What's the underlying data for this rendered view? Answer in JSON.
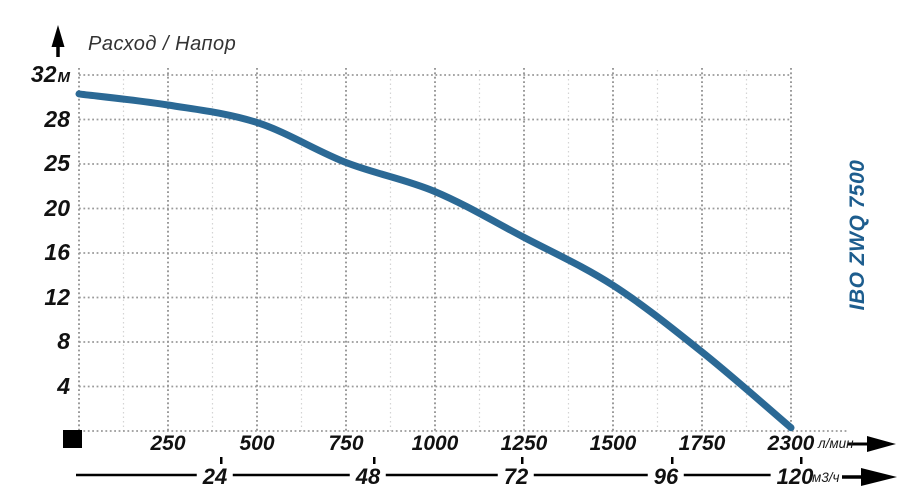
{
  "title": "Расход / Напор",
  "brand": "IBO ZWQ 7500",
  "units": {
    "y": "М",
    "x1": "л/мин",
    "x2": "м3/ч"
  },
  "colors": {
    "curve": "#2b6995",
    "brand_text": "#1d5d8e",
    "grid_major": "#9b9b9b",
    "grid_minor": "#d4d4d4",
    "axis_black": "#000000",
    "axis_text": "#111111",
    "title_text": "#333333"
  },
  "chart_data": {
    "type": "line",
    "title": "Расход / Напор",
    "y_ticks": [
      32,
      28,
      25,
      20,
      16,
      12,
      8,
      4
    ],
    "y_unit": "М",
    "x_ticks_primary": [
      250,
      500,
      750,
      1000,
      1250,
      1500,
      1750,
      2300
    ],
    "x_unit_primary": "л/мин",
    "x_ticks_secondary": [
      24,
      48,
      72,
      96,
      120
    ],
    "x_unit_secondary": "м3/ч",
    "grid": true,
    "legend_position": "right-vertical",
    "series": [
      {
        "name": "IBO ZWQ 7500",
        "points": [
          [
            0,
            30.3
          ],
          [
            250,
            29.3
          ],
          [
            500,
            27.8
          ],
          [
            750,
            25.1
          ],
          [
            1000,
            21.9
          ],
          [
            1250,
            17.4
          ],
          [
            1500,
            13.1
          ],
          [
            1750,
            7.1
          ],
          [
            2300,
            0.3
          ]
        ]
      }
    ]
  }
}
